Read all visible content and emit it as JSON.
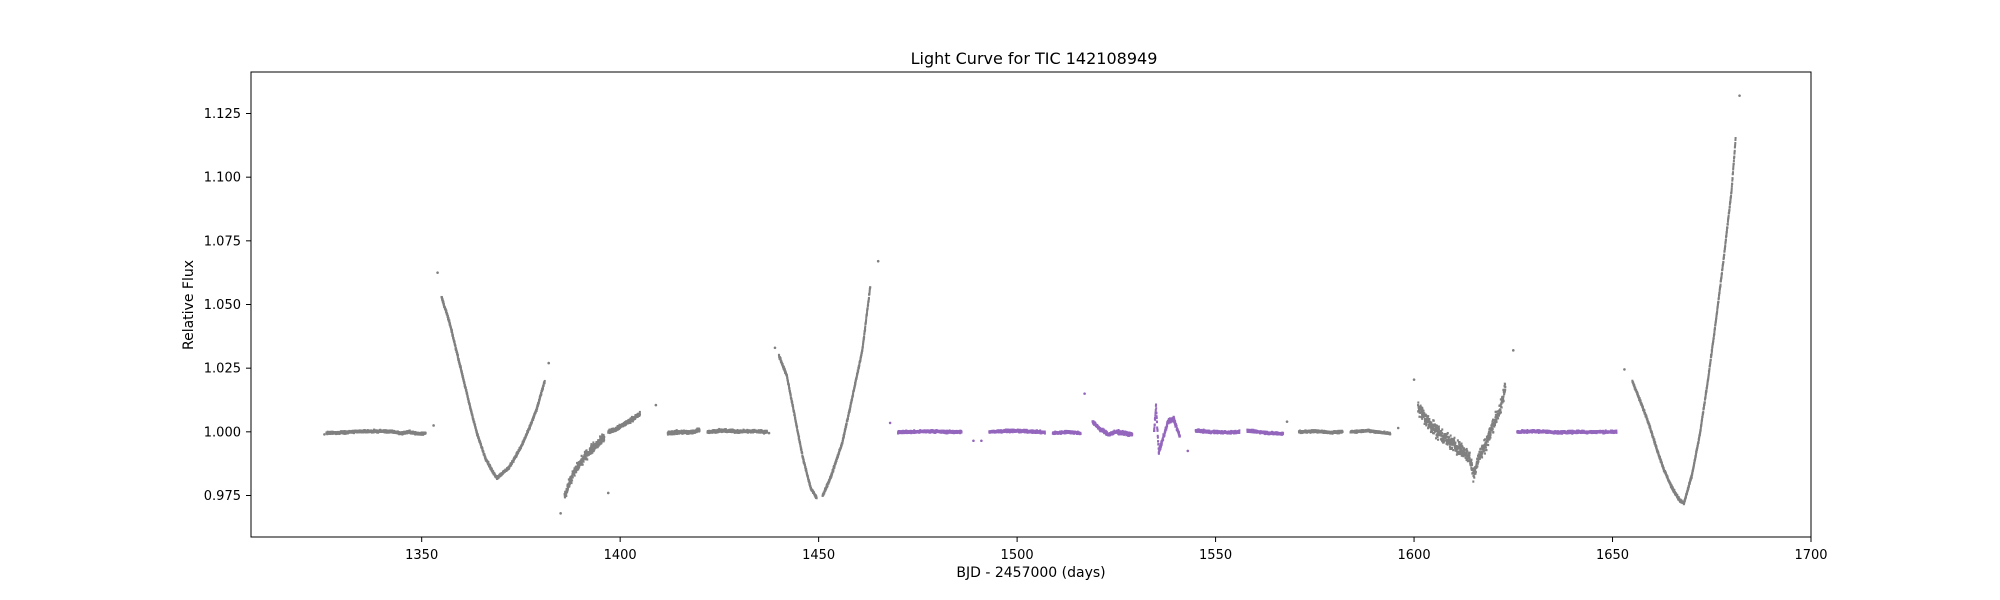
{
  "chart_data": {
    "type": "scatter",
    "title": "Light Curve for TIC 142108949",
    "xlabel": "BJD - 2457000 (days)",
    "ylabel": "Relative Flux",
    "xlim": [
      1307,
      1700
    ],
    "ylim": [
      0.9587,
      1.1413
    ],
    "x_ticks": [
      1350,
      1400,
      1450,
      1500,
      1550,
      1600,
      1650,
      1700
    ],
    "x_tick_labels": [
      "1350",
      "1400",
      "1450",
      "1500",
      "1550",
      "1600",
      "1650",
      "1700"
    ],
    "y_ticks": [
      0.975,
      1.0,
      1.025,
      1.05,
      1.075,
      1.1,
      1.125
    ],
    "y_tick_labels": [
      "0.975",
      "1.000",
      "1.025",
      "1.050",
      "1.075",
      "1.100",
      "1.125"
    ],
    "grid": false,
    "series_colors": {
      "gray": "#808080",
      "purple": "#9467bd"
    },
    "series": [
      {
        "color": "gray",
        "segments": [
          {
            "x": [
              1326,
              1330,
              1335,
              1340,
              1343,
              1345,
              1347,
              1349,
              1351
            ],
            "y": [
              0.9995,
              0.9998,
              1.0002,
              1.0003,
              1.0,
              0.9995,
              1.0,
              0.9993,
              0.9995
            ],
            "noise": 0.0007
          },
          {
            "x": [
              1355,
              1357,
              1360,
              1362,
              1364,
              1366,
              1368,
              1369
            ],
            "y": [
              1.053,
              1.043,
              1.024,
              1.011,
              0.999,
              0.99,
              0.984,
              0.982
            ],
            "noise": 0.0008
          },
          {
            "x": [
              1369,
              1372,
              1375,
              1377,
              1379,
              1381
            ],
            "y": [
              0.982,
              0.986,
              0.994,
              1.001,
              1.009,
              1.02
            ],
            "noise": 0.0008
          },
          {
            "x": [
              1386,
              1388,
              1390,
              1392,
              1394,
              1396
            ],
            "y": [
              0.975,
              0.983,
              0.988,
              0.992,
              0.995,
              0.998
            ],
            "noise": 0.0025
          },
          {
            "x": [
              1397,
              1399,
              1401,
              1403,
              1405
            ],
            "y": [
              1.0,
              1.001,
              1.003,
              1.005,
              1.007
            ],
            "noise": 0.0012
          },
          {
            "x": [
              1412,
              1415,
              1418,
              1420
            ],
            "y": [
              0.9995,
              1.0,
              0.9998,
              1.001
            ],
            "noise": 0.001
          },
          {
            "x": [
              1422,
              1425,
              1430,
              1434,
              1437
            ],
            "y": [
              1.0,
              1.0005,
              1.0002,
              1.0003,
              1.0
            ],
            "noise": 0.0008
          },
          {
            "x": [
              1440,
              1442,
              1444,
              1446,
              1448,
              1449.5
            ],
            "y": [
              1.03,
              1.022,
              1.006,
              0.99,
              0.978,
              0.974
            ],
            "noise": 0.0008
          },
          {
            "x": [
              1451,
              1453,
              1456,
              1458,
              1461,
              1463
            ],
            "y": [
              0.975,
              0.982,
              0.996,
              1.01,
              1.032,
              1.057
            ],
            "noise": 0.0008
          },
          {
            "x": [
              1571,
              1575,
              1579,
              1582
            ],
            "y": [
              1.0,
              1.0003,
              0.9998,
              1.0
            ],
            "noise": 0.0006
          },
          {
            "x": [
              1584,
              1588,
              1592,
              1594
            ],
            "y": [
              1.0,
              1.0005,
              0.9998,
              0.9993
            ],
            "noise": 0.0006
          },
          {
            "x": [
              1601,
              1603,
              1606,
              1609,
              1612,
              1614,
              1615,
              1616,
              1618,
              1620,
              1622,
              1623
            ],
            "y": [
              1.01,
              1.005,
              1.0,
              0.996,
              0.993,
              0.99,
              0.983,
              0.989,
              0.995,
              1.003,
              1.01,
              1.018
            ],
            "noise": 0.004
          },
          {
            "x": [
              1655,
              1657,
              1659,
              1661,
              1663,
              1665,
              1667,
              1668
            ],
            "y": [
              1.02,
              1.012,
              1.004,
              0.994,
              0.985,
              0.978,
              0.973,
              0.972
            ],
            "noise": 0.0008
          },
          {
            "x": [
              1668,
              1670,
              1672,
              1674,
              1676,
              1678,
              1680,
              1681
            ],
            "y": [
              0.972,
              0.983,
              0.999,
              1.02,
              1.043,
              1.068,
              1.095,
              1.115
            ],
            "noise": 0.0008
          }
        ]
      },
      {
        "color": "purple",
        "segments": [
          {
            "x": [
              1470,
              1474,
              1478,
              1482,
              1486
            ],
            "y": [
              1.0,
              1.0,
              1.0003,
              1.0,
              1.0
            ],
            "noise": 0.0007
          },
          {
            "x": [
              1493,
              1498,
              1503,
              1507
            ],
            "y": [
              1.0,
              1.0005,
              1.0002,
              0.9998
            ],
            "noise": 0.0007
          },
          {
            "x": [
              1509,
              1513,
              1516
            ],
            "y": [
              0.9995,
              1.0,
              0.9995
            ],
            "noise": 0.0007
          },
          {
            "x": [
              1519,
              1521,
              1523,
              1525,
              1527,
              1529
            ],
            "y": [
              1.004,
              1.001,
              0.999,
              1.0,
              0.9995,
              0.999
            ],
            "noise": 0.001
          },
          {
            "x": [
              1534.5,
              1535,
              1535.7,
              1536.5,
              1538,
              1539.5,
              1541
            ],
            "y": [
              1.0,
              1.01,
              0.992,
              0.996,
              1.004,
              1.005,
              0.998
            ],
            "noise": 0.0015
          },
          {
            "x": [
              1545,
              1549,
              1553,
              1556
            ],
            "y": [
              1.0005,
              1.0,
              0.9998,
              1.0
            ],
            "noise": 0.0007
          },
          {
            "x": [
              1558,
              1561,
              1564,
              1567
            ],
            "y": [
              1.0005,
              1.0,
              0.9995,
              0.9993
            ],
            "noise": 0.0007
          },
          {
            "x": [
              1626,
              1631,
              1636,
              1641,
              1646,
              1651
            ],
            "y": [
              1.0,
              1.0003,
              0.9998,
              1.0,
              1.0,
              1.0
            ],
            "noise": 0.0007
          }
        ]
      }
    ],
    "outliers": [
      {
        "x": 1325.5,
        "y": 0.999,
        "color": "gray"
      },
      {
        "x": 1353,
        "y": 1.0025,
        "color": "gray"
      },
      {
        "x": 1354,
        "y": 1.0625,
        "color": "gray"
      },
      {
        "x": 1382,
        "y": 1.027,
        "color": "gray"
      },
      {
        "x": 1385,
        "y": 0.968,
        "color": "gray"
      },
      {
        "x": 1397,
        "y": 0.976,
        "color": "gray"
      },
      {
        "x": 1409,
        "y": 1.0105,
        "color": "gray"
      },
      {
        "x": 1439,
        "y": 1.033,
        "color": "gray"
      },
      {
        "x": 1465,
        "y": 1.067,
        "color": "gray"
      },
      {
        "x": 1437.5,
        "y": 0.9995,
        "color": "gray"
      },
      {
        "x": 1568,
        "y": 1.004,
        "color": "gray"
      },
      {
        "x": 1596,
        "y": 1.0015,
        "color": "gray"
      },
      {
        "x": 1600,
        "y": 1.0205,
        "color": "gray"
      },
      {
        "x": 1625,
        "y": 1.032,
        "color": "gray"
      },
      {
        "x": 1653,
        "y": 1.0245,
        "color": "gray"
      },
      {
        "x": 1682,
        "y": 1.132,
        "color": "gray"
      },
      {
        "x": 1468,
        "y": 1.0035,
        "color": "purple"
      },
      {
        "x": 1489,
        "y": 0.9965,
        "color": "purple"
      },
      {
        "x": 1491,
        "y": 0.9965,
        "color": "purple"
      },
      {
        "x": 1517,
        "y": 1.015,
        "color": "purple"
      },
      {
        "x": 1543,
        "y": 0.9925,
        "color": "purple"
      }
    ]
  }
}
